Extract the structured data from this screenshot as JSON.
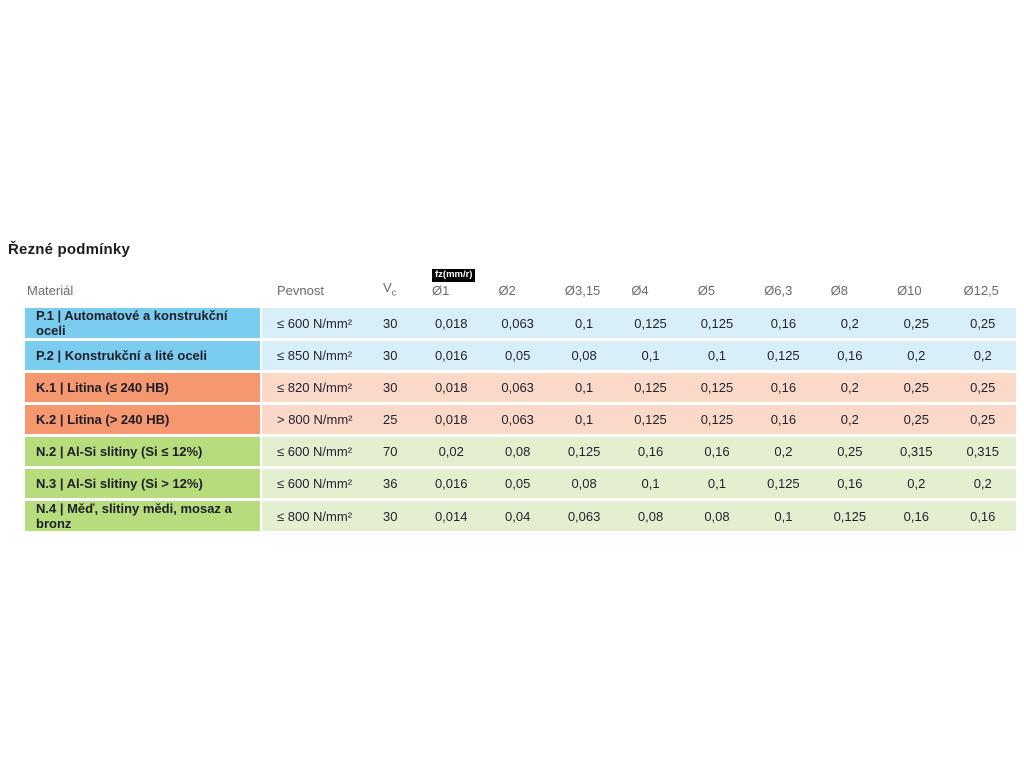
{
  "title": "Řezné podmínky",
  "headers": {
    "material": "Materiál",
    "pevnost": "Pevnost",
    "vc_base": "V",
    "vc_sub": "c"
  },
  "colors": {
    "group_P_strong": "#7bcdf0",
    "group_P_tint": "#d8eef9",
    "group_K_strong": "#f5976f",
    "group_K_tint": "#fbd9c8",
    "group_N_strong": "#b6dc7c",
    "group_N_tint": "#e4efd0",
    "badge_bg": "#000000",
    "badge_text": "#ffffff",
    "header_text": "#6b6b6b",
    "cell_text": "#23232e"
  },
  "chart_data": {
    "type": "table",
    "title": "Řezné podmínky",
    "feed_unit_badge": "fz(mm/r)",
    "columns": [
      "Materiál",
      "Pevnost",
      "Vc",
      "Ø1",
      "Ø2",
      "Ø3,15",
      "Ø4",
      "Ø5",
      "Ø6,3",
      "Ø8",
      "Ø10",
      "Ø12,5"
    ],
    "diameter_columns": [
      "Ø1",
      "Ø2",
      "Ø3,15",
      "Ø4",
      "Ø5",
      "Ø6,3",
      "Ø8",
      "Ø10",
      "Ø12,5"
    ],
    "rows": [
      {
        "group": "P",
        "material": "P.1 | Automatové a konstrukční oceli",
        "pevnost": "≤ 600 N/mm²",
        "vc": "30",
        "feeds": [
          "0,018",
          "0,063",
          "0,1",
          "0,125",
          "0,125",
          "0,16",
          "0,2",
          "0,25",
          "0,25"
        ]
      },
      {
        "group": "P",
        "material": "P.2 | Konstrukční a lité oceli",
        "pevnost": "≤ 850 N/mm²",
        "vc": "30",
        "feeds": [
          "0,016",
          "0,05",
          "0,08",
          "0,1",
          "0,1",
          "0,125",
          "0,16",
          "0,2",
          "0,2"
        ]
      },
      {
        "group": "K",
        "material": "K.1 | Litina (≤ 240 HB)",
        "pevnost": "≤ 820 N/mm²",
        "vc": "30",
        "feeds": [
          "0,018",
          "0,063",
          "0,1",
          "0,125",
          "0,125",
          "0,16",
          "0,2",
          "0,25",
          "0,25"
        ]
      },
      {
        "group": "K",
        "material": "K.2 | Litina (> 240 HB)",
        "pevnost": "> 800 N/mm²",
        "vc": "25",
        "feeds": [
          "0,018",
          "0,063",
          "0,1",
          "0,125",
          "0,125",
          "0,16",
          "0,2",
          "0,25",
          "0,25"
        ]
      },
      {
        "group": "N",
        "material": "N.2 | Al-Si slitiny (Si ≤ 12%)",
        "pevnost": "≤ 600 N/mm²",
        "vc": "70",
        "feeds": [
          "0,02",
          "0,08",
          "0,125",
          "0,16",
          "0,16",
          "0,2",
          "0,25",
          "0,315",
          "0,315"
        ]
      },
      {
        "group": "N",
        "material": "N.3 | Al-Si slitiny (Si > 12%)",
        "pevnost": "≤ 600 N/mm²",
        "vc": "36",
        "feeds": [
          "0,016",
          "0,05",
          "0,08",
          "0,1",
          "0,1",
          "0,125",
          "0,16",
          "0,2",
          "0,2"
        ]
      },
      {
        "group": "N",
        "material": "N.4 | Měď, slitiny mědi, mosaz a bronz",
        "pevnost": "≤ 800 N/mm²",
        "vc": "30",
        "feeds": [
          "0,014",
          "0,04",
          "0,063",
          "0,08",
          "0,08",
          "0,1",
          "0,125",
          "0,16",
          "0,16"
        ]
      }
    ]
  }
}
